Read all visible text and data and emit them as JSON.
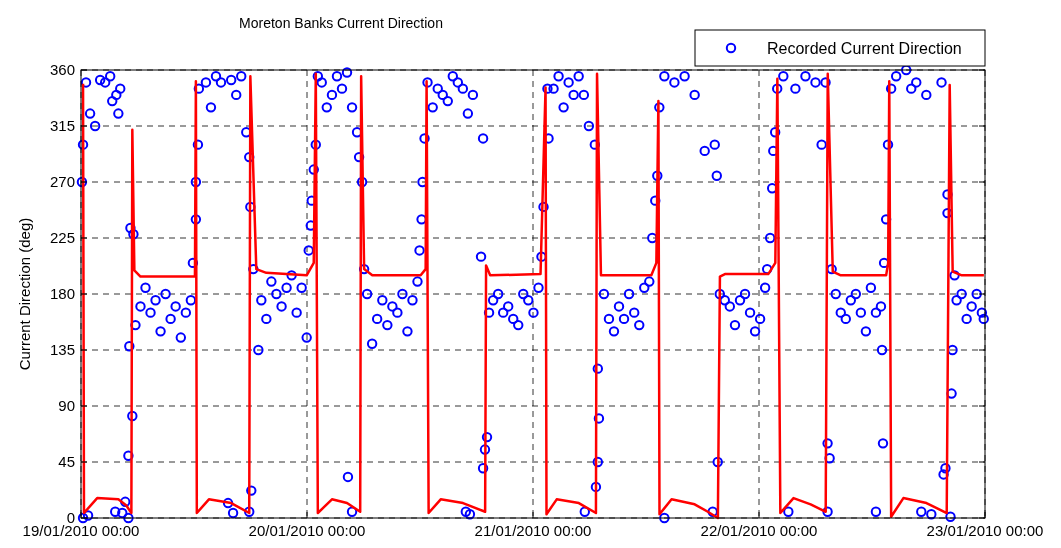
{
  "chart_data": {
    "type": "scatter",
    "title": "Moreton Banks Current Direction",
    "ylabel": "Current Direction (deg)",
    "xlim": [
      "2010-01-19T00:00",
      "2010-01-23T00:00"
    ],
    "xticks": [
      {
        "value": "2010-01-19T00:00",
        "label": "19/01/2010 00:00"
      },
      {
        "value": "2010-01-20T00:00",
        "label": "20/01/2010 00:00"
      },
      {
        "value": "2010-01-21T00:00",
        "label": "21/01/2010 00:00"
      },
      {
        "value": "2010-01-22T00:00",
        "label": "22/01/2010 00:00"
      },
      {
        "value": "2010-01-23T00:00",
        "label": "23/01/2010 00:00"
      }
    ],
    "ylim": [
      0,
      360
    ],
    "yticks": [
      0,
      45,
      90,
      135,
      180,
      225,
      270,
      315,
      360
    ],
    "grid": true,
    "legend": "top right",
    "series": [
      {
        "name": "Recorded Current Direction",
        "type": "scatter",
        "marker": "circle",
        "color": "#0000ff",
        "x": [
          "2010-01-19T00:06",
          "2010-01-19T00:13",
          "2010-01-19T00:13",
          "2010-01-19T00:32",
          "2010-01-19T00:45",
          "2010-01-19T00:58",
          "2010-01-19T01:30",
          "2010-01-19T02:02",
          "2010-01-19T02:34",
          "2010-01-19T03:06",
          "2010-01-19T03:19",
          "2010-01-19T03:38",
          "2010-01-19T03:45",
          "2010-01-19T03:58",
          "2010-01-19T04:10",
          "2010-01-19T04:23",
          "2010-01-19T04:42",
          "2010-01-19T05:02",
          "2010-01-19T05:02",
          "2010-01-19T05:08",
          "2010-01-19T05:15",
          "2010-01-19T05:27",
          "2010-01-19T05:34",
          "2010-01-19T05:47",
          "2010-01-19T06:19",
          "2010-01-19T06:51",
          "2010-01-19T07:23",
          "2010-01-19T07:55",
          "2010-01-19T08:27",
          "2010-01-19T08:59",
          "2010-01-19T09:31",
          "2010-01-19T10:03",
          "2010-01-19T10:36",
          "2010-01-19T11:08",
          "2010-01-19T11:40",
          "2010-01-19T11:53",
          "2010-01-19T12:12",
          "2010-01-19T12:12",
          "2010-01-19T12:25",
          "2010-01-19T12:31",
          "2010-01-19T13:16",
          "2010-01-19T13:48",
          "2010-01-19T14:20",
          "2010-01-19T14:52",
          "2010-01-19T15:37",
          "2010-01-19T15:57",
          "2010-01-19T16:09",
          "2010-01-19T16:29",
          "2010-01-19T17:01",
          "2010-01-19T17:33",
          "2010-01-19T17:52",
          "2010-01-19T17:52",
          "2010-01-19T17:59",
          "2010-01-19T18:05",
          "2010-01-19T18:18",
          "2010-01-19T18:50",
          "2010-01-19T19:09",
          "2010-01-19T19:41",
          "2010-01-19T20:13",
          "2010-01-19T20:45",
          "2010-01-19T21:18",
          "2010-01-19T21:50",
          "2010-01-19T22:22",
          "2010-01-19T22:54",
          "2010-01-19T23:26",
          "2010-01-19T23:58",
          "2010-01-20T00:11",
          "2010-01-20T00:24",
          "2010-01-20T00:30",
          "2010-01-20T00:43",
          "2010-01-20T00:56",
          "2010-01-20T01:09",
          "2010-01-20T01:34",
          "2010-01-20T02:06",
          "2010-01-20T02:39",
          "2010-01-20T03:11",
          "2010-01-20T03:43",
          "2010-01-20T04:15",
          "2010-01-20T04:21",
          "2010-01-20T04:47",
          "2010-01-20T04:47",
          "2010-01-20T05:19",
          "2010-01-20T05:32",
          "2010-01-20T05:51",
          "2010-01-20T06:04",
          "2010-01-20T06:23",
          "2010-01-20T06:55",
          "2010-01-20T07:27",
          "2010-01-20T08:00",
          "2010-01-20T08:32",
          "2010-01-20T09:04",
          "2010-01-20T09:36",
          "2010-01-20T10:08",
          "2010-01-20T10:40",
          "2010-01-20T11:12",
          "2010-01-20T11:44",
          "2010-01-20T11:57",
          "2010-01-20T12:10",
          "2010-01-20T12:16",
          "2010-01-20T12:29",
          "2010-01-20T12:48",
          "2010-01-20T13:21",
          "2010-01-20T13:53",
          "2010-01-20T14:25",
          "2010-01-20T14:57",
          "2010-01-20T15:29",
          "2010-01-20T16:01",
          "2010-01-20T16:33",
          "2010-01-20T16:52",
          "2010-01-20T17:05",
          "2010-01-20T17:18",
          "2010-01-20T17:37",
          "2010-01-20T18:29",
          "2010-01-20T18:42",
          "2010-01-20T18:42",
          "2010-01-20T18:54",
          "2010-01-20T19:07",
          "2010-01-20T19:20",
          "2010-01-20T19:46",
          "2010-01-20T20:18",
          "2010-01-20T20:50",
          "2010-01-20T21:22",
          "2010-01-20T21:54",
          "2010-01-20T22:26",
          "2010-01-20T22:58",
          "2010-01-20T23:30",
          "2010-01-21T00:03",
          "2010-01-21T00:35",
          "2010-01-21T00:54",
          "2010-01-21T01:07",
          "2010-01-21T01:32",
          "2010-01-21T01:39",
          "2010-01-21T02:11",
          "2010-01-21T02:43",
          "2010-01-21T03:15",
          "2010-01-21T03:47",
          "2010-01-21T04:19",
          "2010-01-21T04:51",
          "2010-01-21T05:24",
          "2010-01-21T05:30",
          "2010-01-21T05:56",
          "2010-01-21T06:34",
          "2010-01-21T06:41",
          "2010-01-21T06:53",
          "2010-01-21T06:53",
          "2010-01-21T07:00",
          "2010-01-21T07:32",
          "2010-01-21T08:04",
          "2010-01-21T08:36",
          "2010-01-21T09:08",
          "2010-01-21T09:40",
          "2010-01-21T10:12",
          "2010-01-21T10:45",
          "2010-01-21T11:17",
          "2010-01-21T11:49",
          "2010-01-21T12:21",
          "2010-01-21T12:40",
          "2010-01-21T12:59",
          "2010-01-21T13:12",
          "2010-01-21T13:25",
          "2010-01-21T13:57",
          "2010-01-21T13:57",
          "2010-01-21T15:01",
          "2010-01-21T16:06",
          "2010-01-21T17:10",
          "2010-01-21T18:14",
          "2010-01-21T19:05",
          "2010-01-21T19:18",
          "2010-01-21T19:31",
          "2010-01-21T19:37",
          "2010-01-21T19:50",
          "2010-01-21T20:22",
          "2010-01-21T20:54",
          "2010-01-21T21:27",
          "2010-01-21T21:59",
          "2010-01-21T22:31",
          "2010-01-21T23:03",
          "2010-01-21T23:35",
          "2010-01-22T00:07",
          "2010-01-22T00:39",
          "2010-01-22T00:52",
          "2010-01-22T01:11",
          "2010-01-22T01:24",
          "2010-01-22T01:31",
          "2010-01-22T01:43",
          "2010-01-22T01:56",
          "2010-01-22T02:35",
          "2010-01-22T03:07",
          "2010-01-22T03:52",
          "2010-01-22T04:56",
          "2010-01-22T06:00",
          "2010-01-22T06:39",
          "2010-01-22T07:04",
          "2010-01-22T07:17",
          "2010-01-22T07:17",
          "2010-01-22T07:30",
          "2010-01-22T07:43",
          "2010-01-22T08:09",
          "2010-01-22T08:41",
          "2010-01-22T09:13",
          "2010-01-22T09:45",
          "2010-01-22T10:17",
          "2010-01-22T10:49",
          "2010-01-22T11:21",
          "2010-01-22T11:53",
          "2010-01-22T12:25",
          "2010-01-22T12:25",
          "2010-01-22T12:57",
          "2010-01-22T13:04",
          "2010-01-22T13:10",
          "2010-01-22T13:17",
          "2010-01-22T13:30",
          "2010-01-22T13:42",
          "2010-01-22T14:02",
          "2010-01-22T14:34",
          "2010-01-22T15:38",
          "2010-01-22T16:10",
          "2010-01-22T16:42",
          "2010-01-22T17:14",
          "2010-01-22T17:46",
          "2010-01-22T18:18",
          "2010-01-22T19:23",
          "2010-01-22T19:36",
          "2010-01-22T19:48",
          "2010-01-22T20:01",
          "2010-01-22T20:01",
          "2010-01-22T20:20",
          "2010-01-22T20:27",
          "2010-01-22T20:33",
          "2010-01-22T20:46",
          "2010-01-22T20:59",
          "2010-01-22T21:31",
          "2010-01-22T22:03",
          "2010-01-22T22:35",
          "2010-01-22T23:07",
          "2010-01-22T23:40",
          "2010-01-22T23:52"
        ],
        "values": [
          270,
          300,
          0,
          350,
          2,
          325,
          315,
          352,
          350,
          355,
          335,
          5,
          340,
          325,
          345,
          4,
          13,
          0,
          50,
          138,
          233,
          82,
          228,
          155,
          170,
          185,
          165,
          175,
          150,
          180,
          160,
          170,
          145,
          165,
          175,
          205,
          240,
          270,
          300,
          345,
          350,
          330,
          355,
          350,
          12,
          352,
          4,
          340,
          355,
          310,
          290,
          5,
          250,
          22,
          200,
          135,
          175,
          160,
          190,
          180,
          170,
          185,
          195,
          165,
          185,
          145,
          215,
          235,
          255,
          280,
          300,
          355,
          350,
          330,
          340,
          355,
          345,
          358,
          33,
          330,
          5,
          310,
          290,
          270,
          200,
          180,
          140,
          160,
          175,
          155,
          170,
          165,
          180,
          150,
          175,
          190,
          215,
          240,
          270,
          305,
          350,
          330,
          345,
          340,
          335,
          355,
          350,
          345,
          5,
          325,
          3,
          340,
          210,
          305,
          40,
          55,
          65,
          165,
          175,
          180,
          165,
          170,
          160,
          155,
          180,
          175,
          165,
          185,
          210,
          250,
          345,
          305,
          345,
          355,
          330,
          350,
          340,
          355,
          340,
          5,
          315,
          300,
          25,
          45,
          120,
          80,
          180,
          160,
          150,
          170,
          160,
          180,
          165,
          155,
          185,
          190,
          225,
          255,
          275,
          330,
          355,
          0,
          350,
          355,
          340,
          295,
          5,
          300,
          275,
          45,
          180,
          175,
          170,
          155,
          175,
          180,
          165,
          150,
          160,
          185,
          200,
          225,
          265,
          295,
          310,
          345,
          355,
          5,
          345,
          355,
          350,
          300,
          350,
          60,
          5,
          48,
          200,
          180,
          165,
          160,
          175,
          180,
          165,
          150,
          185,
          165,
          5,
          170,
          135,
          60,
          205,
          240,
          300,
          345,
          355,
          360,
          345,
          350,
          5,
          340,
          3,
          350,
          35,
          40,
          260,
          245,
          1,
          100,
          135,
          195,
          175,
          180,
          160,
          170,
          180,
          165,
          160
        ]
      },
      {
        "type": "line",
        "color": "#ff0000",
        "x": [
          "2010-01-19T00:13",
          "2010-01-19T00:19",
          "2010-01-19T01:43",
          "2010-01-19T03:58",
          "2010-01-19T04:49",
          "2010-01-19T05:21",
          "2010-01-19T05:27",
          "2010-01-19T05:40",
          "2010-01-19T06:19",
          "2010-01-19T12:06",
          "2010-01-19T12:12",
          "2010-01-19T12:18",
          "2010-01-19T13:35",
          "2010-01-19T15:57",
          "2010-01-19T17:52",
          "2010-01-19T17:59",
          "2010-01-19T18:37",
          "2010-01-19T19:41",
          "2010-01-19T23:58",
          "2010-01-20T00:43",
          "2010-01-20T00:56",
          "2010-01-20T01:09",
          "2010-01-20T02:39",
          "2010-01-20T04:15",
          "2010-01-20T05:39",
          "2010-01-20T05:45",
          "2010-01-20T06:04",
          "2010-01-20T06:56",
          "2010-01-20T12:04",
          "2010-01-20T12:36",
          "2010-01-20T12:42",
          "2010-01-20T12:55",
          "2010-01-20T14:12",
          "2010-01-20T16:34",
          "2010-01-20T18:55",
          "2010-01-20T19:01",
          "2010-01-20T19:27",
          "2010-01-21T00:48",
          "2010-01-21T01:20",
          "2010-01-21T01:26",
          "2010-01-21T02:31",
          "2010-01-21T04:52",
          "2010-01-21T06:41",
          "2010-01-21T06:48",
          "2010-01-21T07:13",
          "2010-01-21T12:34",
          "2010-01-21T13:06",
          "2010-01-21T13:19",
          "2010-01-21T13:26",
          "2010-01-21T14:43",
          "2010-01-21T17:10",
          "2010-01-21T18:34",
          "2010-01-21T19:38",
          "2010-01-21T19:51",
          "2010-01-21T20:23",
          "2010-01-22T00:59",
          "2010-01-22T01:44",
          "2010-01-22T01:57",
          "2010-01-22T02:16",
          "2010-01-22T03:40",
          "2010-01-22T05:29",
          "2010-01-22T07:05",
          "2010-01-22T07:18",
          "2010-01-22T07:50",
          "2010-01-22T08:41",
          "2010-01-22T13:30",
          "2010-01-22T13:43",
          "2010-01-22T13:50",
          "2010-01-22T14:02",
          "2010-01-22T15:20",
          "2010-01-22T17:47",
          "2010-01-22T19:56",
          "2010-01-22T20:15",
          "2010-01-22T20:34",
          "2010-01-22T21:32",
          "2010-01-22T23:53"
        ],
        "values": [
          349,
          4,
          16,
          15,
          10,
          4,
          312,
          199,
          194,
          194,
          351,
          4,
          15,
          12,
          4,
          355,
          200,
          197,
          195,
          205,
          357,
          4,
          15,
          12,
          5,
          355,
          200,
          195,
          195,
          200,
          351,
          4,
          15,
          12,
          5,
          203,
          195,
          196,
          346,
          3,
          15,
          12,
          4,
          357,
          195,
          195,
          205,
          335,
          3,
          15,
          11,
          5,
          0,
          194,
          196,
          196,
          205,
          353,
          4,
          16,
          11,
          5,
          357,
          198,
          195,
          195,
          205,
          351,
          1,
          16,
          12,
          4,
          348,
          198,
          195,
          195
        ]
      }
    ]
  }
}
